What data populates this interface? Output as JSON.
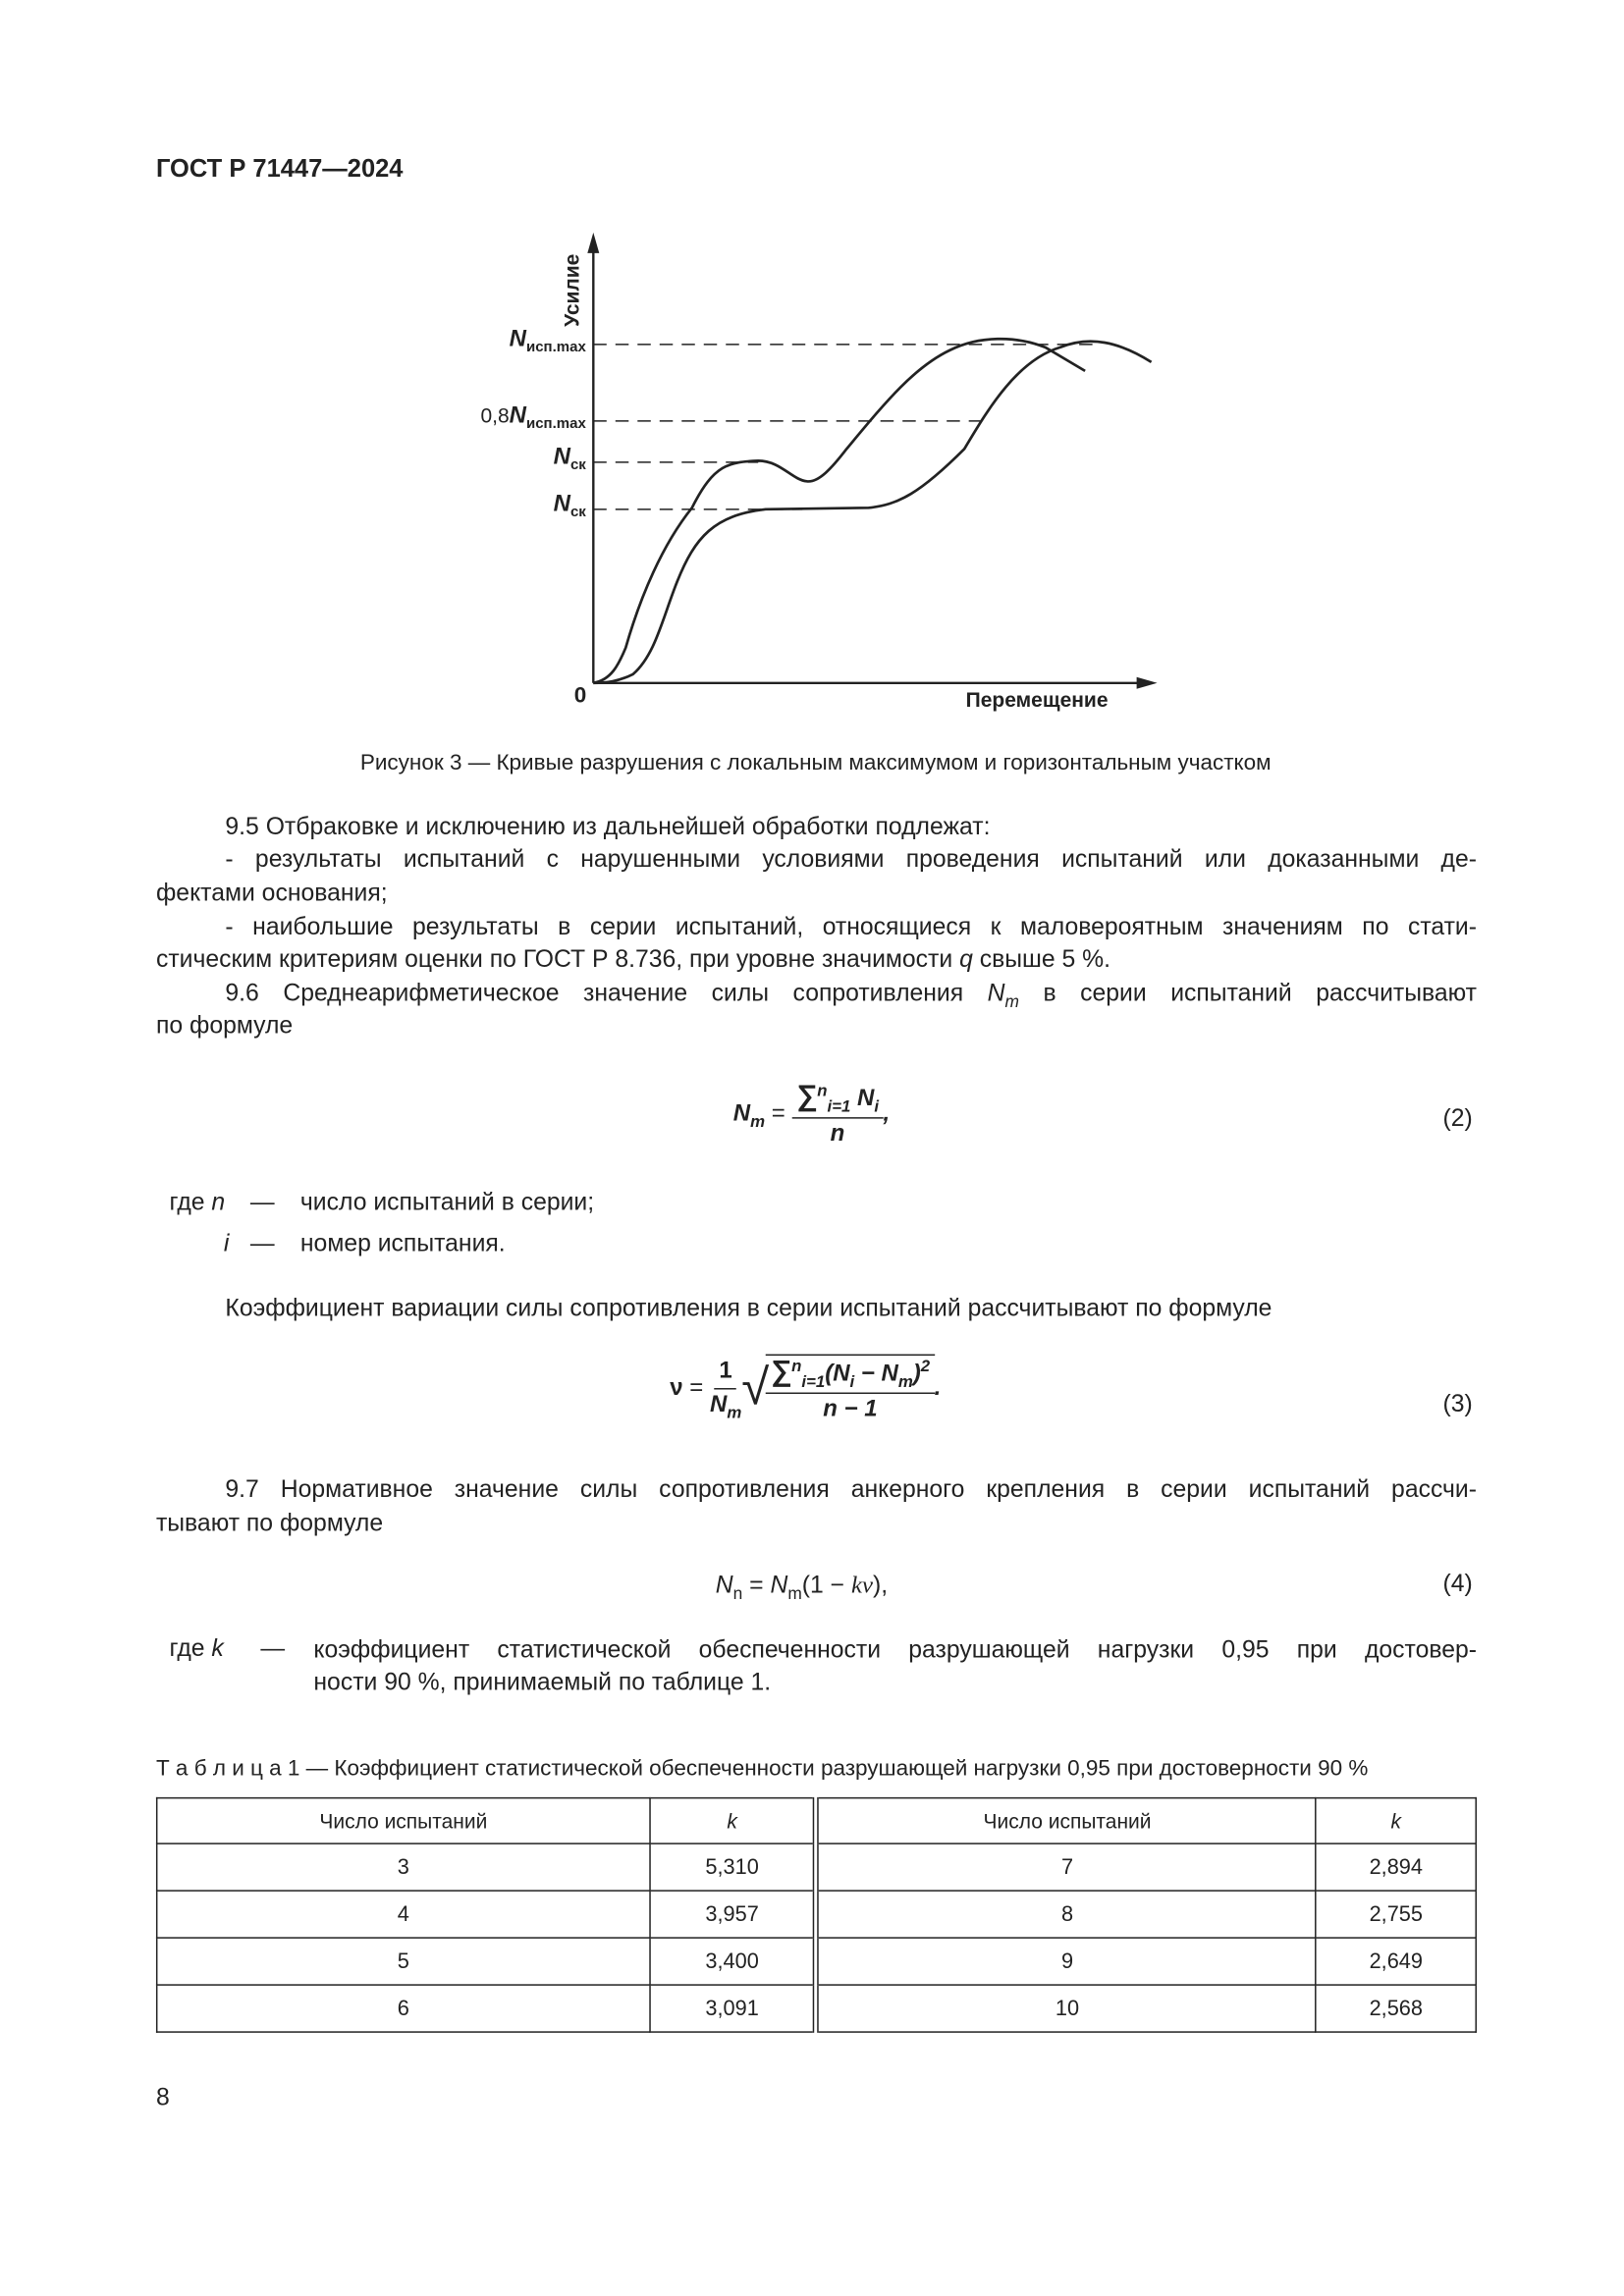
{
  "header": {
    "doc_id": "ГОСТ Р 71447—2024"
  },
  "figure": {
    "y_axis_label": "Усилие",
    "x_axis_label": "Перемещение",
    "origin_label": "0",
    "levels": [
      {
        "prefix": "",
        "sym": "N",
        "sub": "исп.max"
      },
      {
        "prefix": "0,8",
        "sym": "N",
        "sub": "исп.max"
      },
      {
        "prefix": "",
        "sym": "N",
        "sub": "ск"
      },
      {
        "prefix": "",
        "sym": "N",
        "sub": "ск"
      }
    ],
    "caption": "Рисунок 3 — Кривые разрушения с локальным максимумом и горизонтальным участком"
  },
  "paragraphs": [
    {
      "indent": true,
      "justify": false,
      "segs": [
        {
          "t": "9.5 Отбраковке и исключению из дальнейшей обработки подлежат:"
        }
      ]
    },
    {
      "indent": true,
      "justify": true,
      "segs": [
        {
          "t": "- результаты испытаний с нарушенными условиями проведения испытаний или доказанными де-"
        }
      ]
    },
    {
      "indent": false,
      "justify": false,
      "segs": [
        {
          "t": "фектами основания;"
        }
      ]
    },
    {
      "indent": true,
      "justify": true,
      "segs": [
        {
          "t": "- наибольшие результаты в серии испытаний, относящиеся к маловероятным значениям по стати-"
        }
      ]
    },
    {
      "indent": false,
      "justify": false,
      "segs": [
        {
          "t": "стическим критериям оценки по ГОСТ Р 8.736, при уровне значимости "
        },
        {
          "t": "q",
          "i": true
        },
        {
          "t": " свыше 5 %."
        }
      ]
    },
    {
      "indent": true,
      "justify": true,
      "segs": [
        {
          "t": "9.6 Среднеарифметическое значение силы сопротивления "
        },
        {
          "t": "N",
          "i": true,
          "sub": "m"
        },
        {
          "t": " в серии испытаний рассчитывают"
        }
      ]
    },
    {
      "indent": false,
      "justify": false,
      "segs": [
        {
          "t": "по формуле"
        }
      ]
    }
  ],
  "formula2": {
    "lhs": "N",
    "lhs_sub": "m",
    "eq": "=",
    "sum": "∑",
    "sum_sup": "n",
    "sum_sub": "i=1",
    "term": "N",
    "term_sub": "i",
    "den": "n",
    "end": ",",
    "number": "(2)"
  },
  "where1": [
    {
      "sym": "где n",
      "dash": "—",
      "text": "число испытаний в серии;"
    },
    {
      "sym": "i",
      "dash": "—",
      "text": "номер испытания."
    }
  ],
  "coef_text": "Коэффициент вариации силы сопротивления в серии испытаний рассчитывают по формуле",
  "formula3": {
    "lhs": "ν",
    "eq": "=",
    "one": "1",
    "nm": "N",
    "nm_sub": "m",
    "sum": "∑",
    "sum_sup": "n",
    "sum_sub": "i=1",
    "body": "(N",
    "body_sub": "i",
    "minus": " − N",
    "minus_sub": "m",
    "close": ")",
    "sq": "2",
    "den": "n − 1",
    "end": ".",
    "number": "(3)"
  },
  "paragraphs2": [
    {
      "indent": true,
      "justify": true,
      "segs": [
        {
          "t": "9.7 Нормативное значение силы сопротивления анкерного крепления в серии испытаний рассчи-"
        }
      ]
    },
    {
      "indent": false,
      "justify": false,
      "segs": [
        {
          "t": "тывают по формуле"
        }
      ]
    }
  ],
  "formula4": {
    "a": "N",
    "a_sub": "n",
    "b": " = ",
    "c": "N",
    "c_sub": "m",
    "d": "(1 − ",
    "e": "kv",
    "f": "),",
    "number": "(4)"
  },
  "where2": {
    "sym": "где k",
    "dash": "—",
    "line1": "коэффициент статистической обеспеченности разрушающей нагрузки 0,95 при достовер-",
    "line2": "ности 90 %, принимаемый по таблице 1."
  },
  "table": {
    "title": "Т а б л и ц а 1 — Коэффициент статистической обеспеченности разрушающей нагрузки 0,95 при достоверности 90 %",
    "headers": [
      "Число испытаний",
      "k",
      "Число испытаний",
      "k"
    ],
    "rows": [
      [
        "3",
        "5,310",
        "7",
        "2,894"
      ],
      [
        "4",
        "3,957",
        "8",
        "2,755"
      ],
      [
        "5",
        "3,400",
        "9",
        "2,649"
      ],
      [
        "6",
        "3,091",
        "10",
        "2,568"
      ]
    ]
  },
  "page_number": "8"
}
